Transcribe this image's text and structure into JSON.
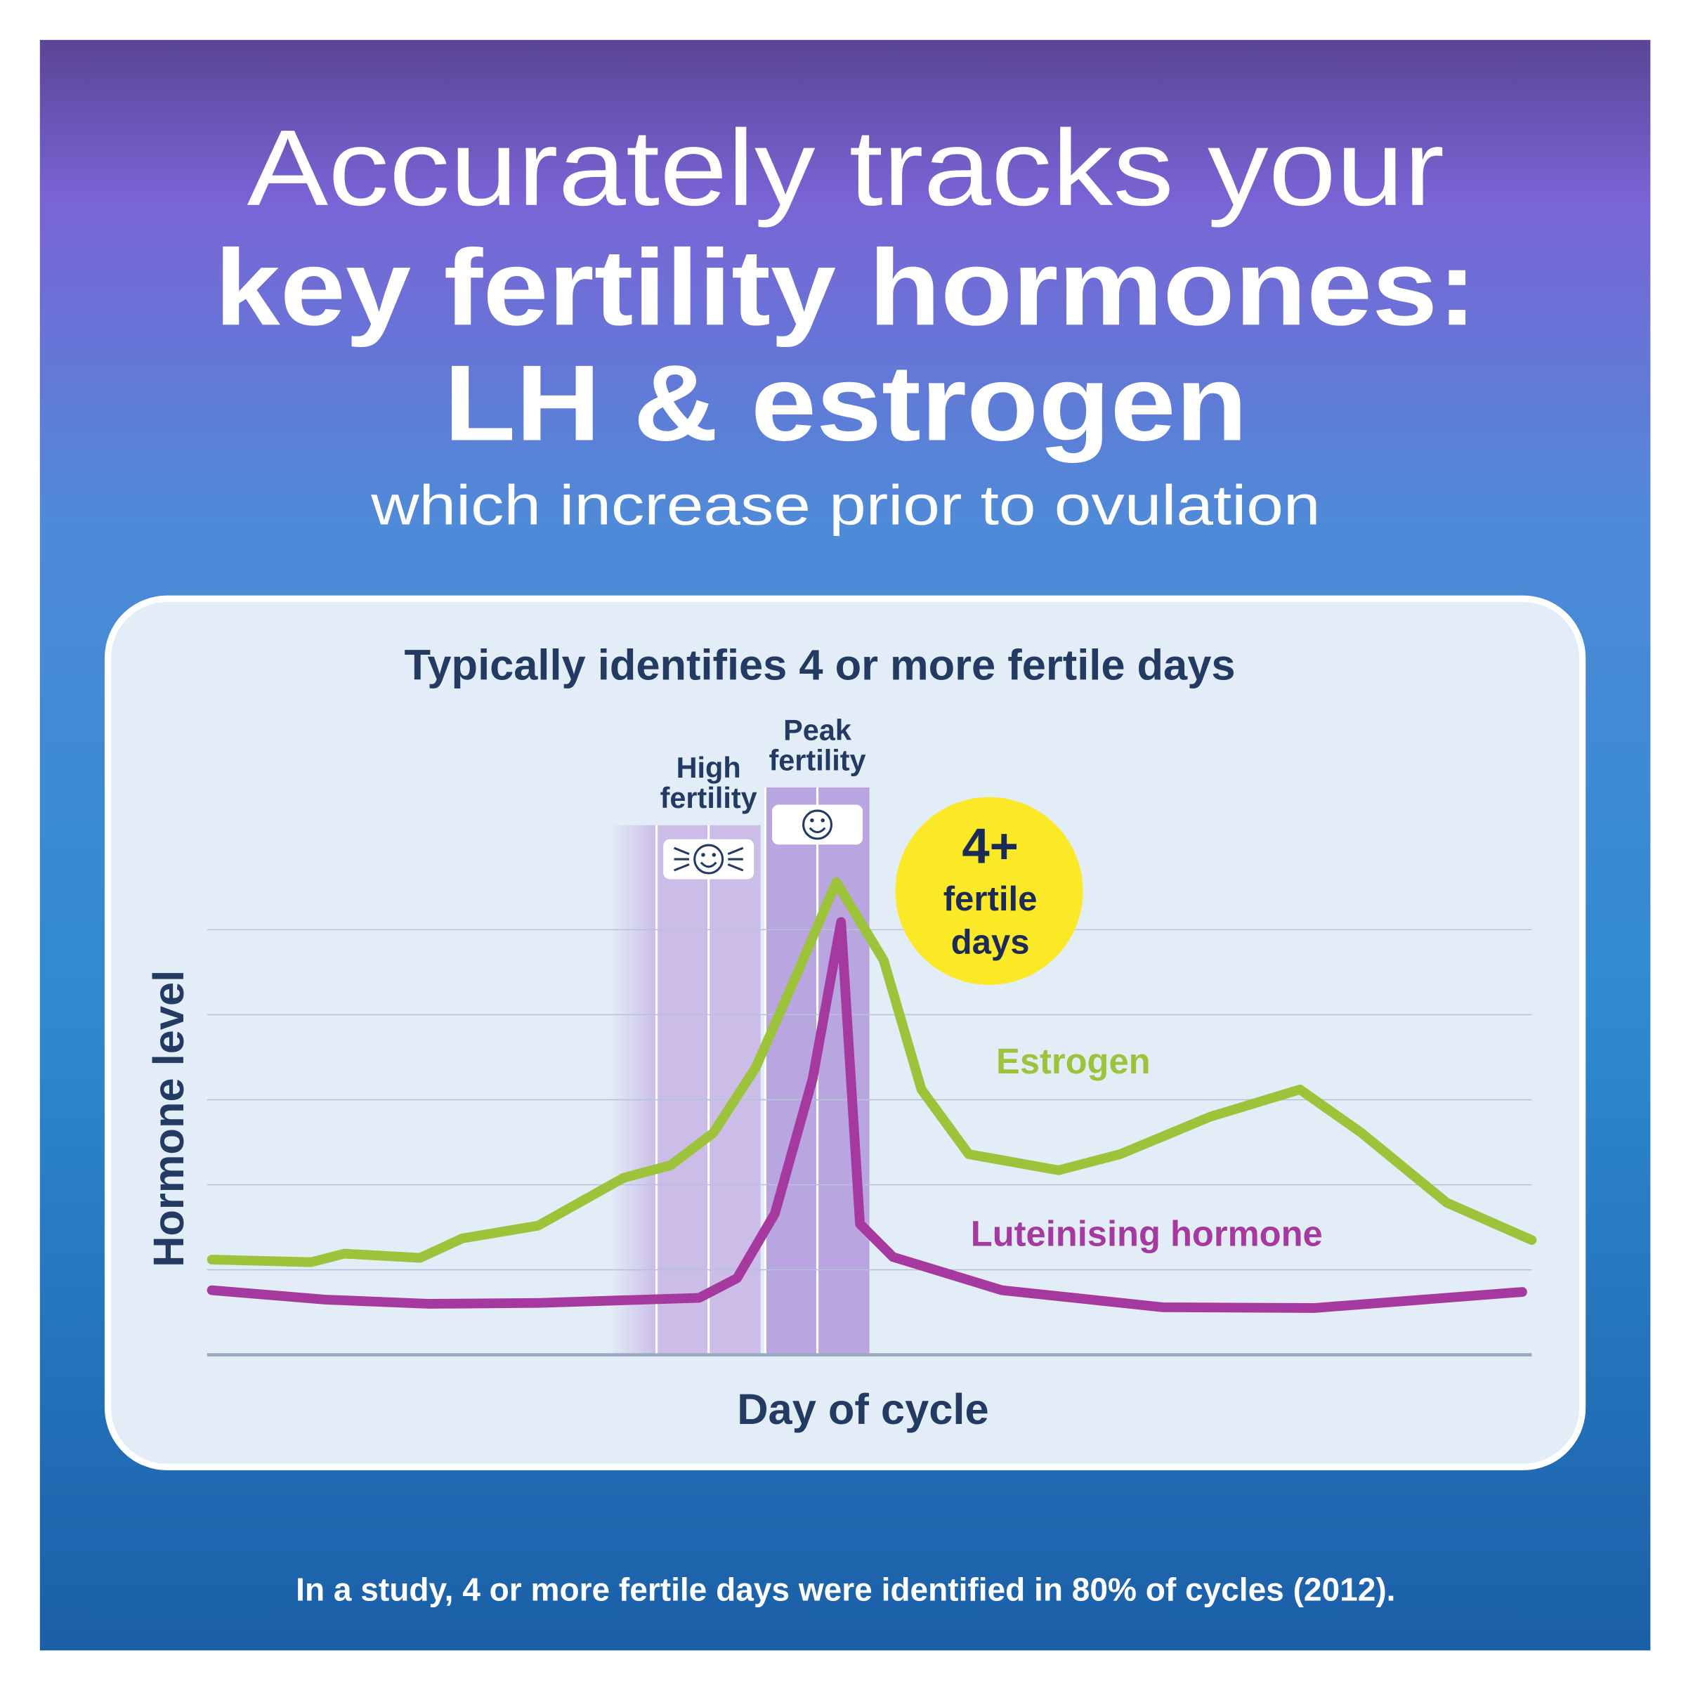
{
  "title_lines": [
    "Accurately tracks your",
    "key fertility hormones:",
    "LH & estrogen"
  ],
  "subtitle": "which increase prior to ovulation",
  "footnote": "In a study, 4 or more fertile days were identified in 80% of cycles (2012).",
  "chart_data": {
    "type": "line",
    "title": "Typically identifies 4 or more fertile days",
    "x_label": "Day of cycle",
    "y_label": "Hormone level",
    "xlim": [
      0,
      28
    ],
    "ylim": [
      0,
      6
    ],
    "yticks": [
      1,
      2,
      3,
      4,
      5
    ],
    "grid": true,
    "series": [
      {
        "name": "Estrogen",
        "color": "#9dc33b",
        "x": [
          0.1,
          2.2,
          2.9,
          4.5,
          5.4,
          7.0,
          8.8,
          9.8,
          10.7,
          11.6,
          12.5,
          13.3,
          14.3,
          15.1,
          16.1,
          18.0,
          19.3,
          21.2,
          23.1,
          24.4,
          26.2,
          28.0
        ],
        "values": [
          1.12,
          1.09,
          1.19,
          1.14,
          1.37,
          1.52,
          2.08,
          2.23,
          2.61,
          3.38,
          4.52,
          5.56,
          4.64,
          3.12,
          2.36,
          2.17,
          2.36,
          2.8,
          3.12,
          2.61,
          1.79,
          1.35
        ]
      },
      {
        "name": "Luteinising hormone",
        "color": "#a6399f",
        "x": [
          0.1,
          2.5,
          4.7,
          7.0,
          10.4,
          11.2,
          12.0,
          12.8,
          13.4,
          13.8,
          14.5,
          16.8,
          20.2,
          23.4,
          27.8
        ],
        "values": [
          0.76,
          0.65,
          0.6,
          0.61,
          0.67,
          0.9,
          1.66,
          3.25,
          5.09,
          1.54,
          1.15,
          0.76,
          0.56,
          0.55,
          0.74
        ]
      }
    ],
    "bands": [
      {
        "label_lines": [
          "High",
          "fertility"
        ],
        "x": [
          9.5,
          11.7
        ],
        "color": "#cbbde8"
      },
      {
        "label_lines": [
          "Peak",
          "fertility"
        ],
        "x": [
          11.8,
          14.0
        ],
        "color": "#b9a5df"
      }
    ],
    "badge": {
      "lines": [
        "4+",
        "fertile",
        "days"
      ],
      "color": "#fbe928"
    }
  }
}
